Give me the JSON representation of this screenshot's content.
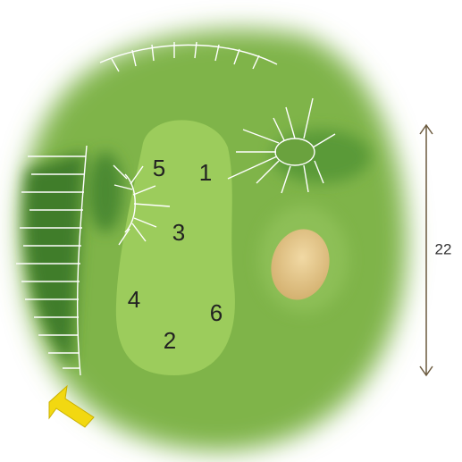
{
  "pins": [
    "5",
    "1",
    "3",
    "4",
    "6",
    "2"
  ],
  "dimension": "22"
}
